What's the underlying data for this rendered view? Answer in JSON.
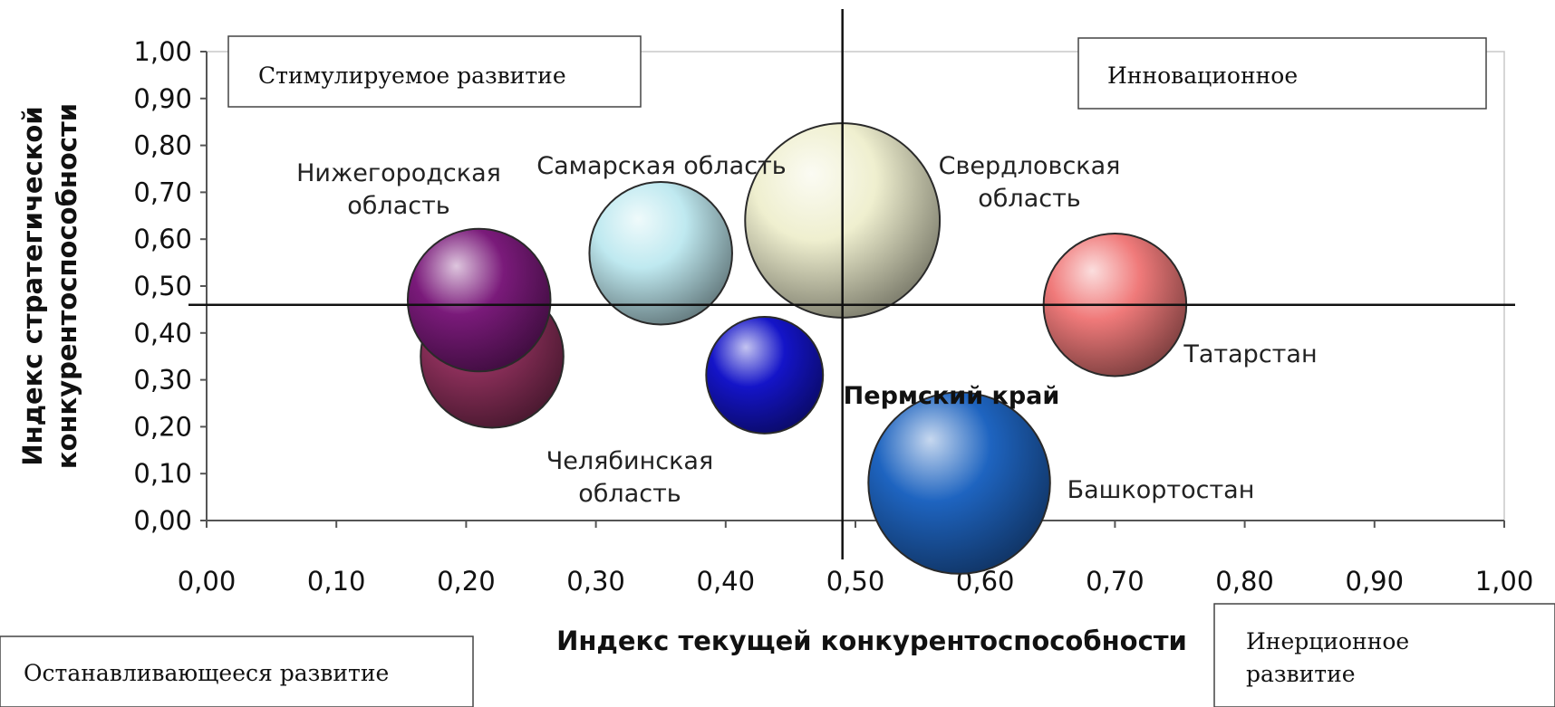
{
  "chart_data": {
    "type": "bubble",
    "xlabel": "Индекс текущей конкурентоспособности",
    "ylabel_lines": [
      "Индекс стратегической",
      "конкурентоспособности"
    ],
    "xlim": [
      0,
      1
    ],
    "ylim": [
      0,
      1
    ],
    "xticks": [
      "0,00",
      "0,10",
      "0,20",
      "0,30",
      "0,40",
      "0,50",
      "0,60",
      "0,70",
      "0,80",
      "0,90",
      "1,00"
    ],
    "yticks": [
      "0,00",
      "0,10",
      "0,20",
      "0,30",
      "0,40",
      "0,50",
      "0,60",
      "0,70",
      "0,80",
      "0,90",
      "1,00"
    ],
    "divider_x": 0.49,
    "divider_y": 0.46,
    "points": [
      {
        "label_lines": [
          "Челябинская",
          "область"
        ],
        "x": 0.22,
        "y": 0.35,
        "size": 0.055,
        "color": "#8c2f5a"
      },
      {
        "label_lines": [
          "Нижегородская",
          "область"
        ],
        "x": 0.21,
        "y": 0.47,
        "size": 0.055,
        "color": "#7a1a7a"
      },
      {
        "label_lines": [
          "Самарская область"
        ],
        "x": 0.35,
        "y": 0.57,
        "size": 0.055,
        "color": "#bfe9f0"
      },
      {
        "label_lines": [
          "Свердловская",
          "область"
        ],
        "x": 0.49,
        "y": 0.64,
        "size": 0.075,
        "color": "#efefcf"
      },
      {
        "label_lines": [
          "Татарстан"
        ],
        "x": 0.7,
        "y": 0.46,
        "size": 0.055,
        "color": "#f07a7a"
      },
      {
        "label_lines": [
          "Пермский край"
        ],
        "x": 0.43,
        "y": 0.31,
        "size": 0.045,
        "color": "#1414c8"
      },
      {
        "label_lines": [
          "Башкортостан"
        ],
        "x": 0.58,
        "y": 0.08,
        "size": 0.07,
        "color": "#1e64c0"
      }
    ],
    "zones": [
      {
        "text_lines": [
          "Стимулируемое развитие"
        ]
      },
      {
        "text_lines": [
          "Инновационное"
        ]
      },
      {
        "text_lines": [
          "Останавливающееся развитие"
        ]
      },
      {
        "text_lines": [
          "Инерционное",
          "развитие"
        ]
      }
    ]
  }
}
